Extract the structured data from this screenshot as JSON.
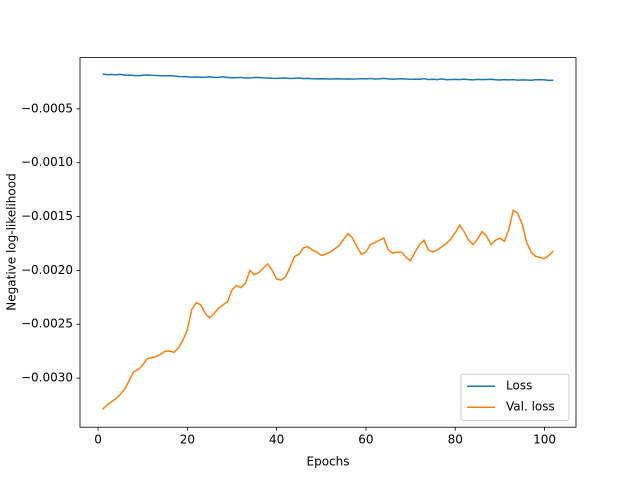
{
  "chart_data": {
    "type": "line",
    "xlabel": "Epochs",
    "ylabel": "Negative log-likelihood",
    "x": [
      1,
      2,
      3,
      4,
      5,
      6,
      7,
      8,
      9,
      10,
      11,
      12,
      13,
      14,
      15,
      16,
      17,
      18,
      19,
      20,
      21,
      22,
      23,
      24,
      25,
      26,
      27,
      28,
      29,
      30,
      31,
      32,
      33,
      34,
      35,
      36,
      37,
      38,
      39,
      40,
      41,
      42,
      43,
      44,
      45,
      46,
      47,
      48,
      49,
      50,
      51,
      52,
      53,
      54,
      55,
      56,
      57,
      58,
      59,
      60,
      61,
      62,
      63,
      64,
      65,
      66,
      67,
      68,
      69,
      70,
      71,
      72,
      73,
      74,
      75,
      76,
      77,
      78,
      79,
      80,
      81,
      82,
      83,
      84,
      85,
      86,
      87,
      88,
      89,
      90,
      91,
      92,
      93,
      94,
      95,
      96,
      97,
      98,
      99,
      100,
      101,
      102
    ],
    "series": [
      {
        "name": "Loss",
        "color": "#1f77b4",
        "values": [
          -0.000178,
          -0.000182,
          -0.000181,
          -0.000183,
          -0.00018,
          -0.000187,
          -0.000186,
          -0.00019,
          -0.000192,
          -0.000188,
          -0.000185,
          -0.000188,
          -0.00019,
          -0.000192,
          -0.000193,
          -0.000193,
          -0.000194,
          -0.0002,
          -0.000201,
          -0.000203,
          -0.000205,
          -0.000204,
          -0.000206,
          -0.000205,
          -0.000203,
          -0.000208,
          -0.000206,
          -0.000203,
          -0.000208,
          -0.000212,
          -0.00021,
          -0.000208,
          -0.000214,
          -0.000213,
          -0.000209,
          -0.000208,
          -0.000212,
          -0.000214,
          -0.000216,
          -0.000217,
          -0.000215,
          -0.000214,
          -0.000218,
          -0.000216,
          -0.000214,
          -0.000219,
          -0.000217,
          -0.00022,
          -0.000222,
          -0.00022,
          -0.000221,
          -0.000223,
          -0.000221,
          -0.00022,
          -0.000223,
          -0.000222,
          -0.000224,
          -0.000221,
          -0.000219,
          -0.000222,
          -0.000218,
          -0.000223,
          -0.000221,
          -0.000217,
          -0.000222,
          -0.000225,
          -0.000221,
          -0.00022,
          -0.000223,
          -0.000226,
          -0.000224,
          -0.000225,
          -0.000219,
          -0.000227,
          -0.000225,
          -0.000228,
          -0.000222,
          -0.00023,
          -0.000227,
          -0.000226,
          -0.000229,
          -0.000224,
          -0.000228,
          -0.000231,
          -0.000226,
          -0.000229,
          -0.000227,
          -0.000225,
          -0.00023,
          -0.000232,
          -0.000228,
          -0.000231,
          -0.000229,
          -0.000233,
          -0.000231,
          -0.000232,
          -0.000234,
          -0.00023,
          -0.000229,
          -0.000231,
          -0.000235,
          -0.000234
        ]
      },
      {
        "name": "Val. loss",
        "color": "#ff7f0e",
        "values": [
          -0.00329,
          -0.00325,
          -0.00322,
          -0.00319,
          -0.00315,
          -0.0031,
          -0.00302,
          -0.00294,
          -0.00292,
          -0.00288,
          -0.00282,
          -0.00281,
          -0.0028,
          -0.00278,
          -0.00275,
          -0.00275,
          -0.00276,
          -0.00272,
          -0.00265,
          -0.00255,
          -0.00236,
          -0.0023,
          -0.00232,
          -0.0024,
          -0.00244,
          -0.0024,
          -0.00235,
          -0.00232,
          -0.00229,
          -0.00218,
          -0.00214,
          -0.00216,
          -0.00212,
          -0.002,
          -0.00204,
          -0.00202,
          -0.00198,
          -0.00194,
          -0.002,
          -0.00208,
          -0.00209,
          -0.00206,
          -0.00197,
          -0.00187,
          -0.00185,
          -0.00179,
          -0.00178,
          -0.00181,
          -0.00183,
          -0.00186,
          -0.00185,
          -0.00183,
          -0.0018,
          -0.00177,
          -0.00171,
          -0.00166,
          -0.0017,
          -0.00178,
          -0.00185,
          -0.00183,
          -0.00176,
          -0.00174,
          -0.00172,
          -0.0017,
          -0.00181,
          -0.00184,
          -0.00183,
          -0.00183,
          -0.00188,
          -0.00191,
          -0.00183,
          -0.00176,
          -0.00172,
          -0.00181,
          -0.00183,
          -0.00181,
          -0.00178,
          -0.00175,
          -0.00171,
          -0.00165,
          -0.00158,
          -0.00164,
          -0.00172,
          -0.00176,
          -0.00171,
          -0.00164,
          -0.00168,
          -0.00176,
          -0.00172,
          -0.0017,
          -0.00173,
          -0.00162,
          -0.00144,
          -0.00147,
          -0.00157,
          -0.00174,
          -0.00183,
          -0.00187,
          -0.00188,
          -0.00189,
          -0.00186,
          -0.00182
        ]
      }
    ],
    "xlim": [
      -4.05,
      107.05
    ],
    "ylim": [
      -0.003456,
      -2.4e-05
    ],
    "xticks": [
      0,
      20,
      40,
      60,
      80,
      100
    ],
    "yticks": [
      {
        "value": -0.003,
        "label": "−0.0030"
      },
      {
        "value": -0.0025,
        "label": "−0.0025"
      },
      {
        "value": -0.002,
        "label": "−0.0020"
      },
      {
        "value": -0.0015,
        "label": "−0.0015"
      },
      {
        "value": -0.001,
        "label": "−0.0010"
      },
      {
        "value": -0.0005,
        "label": "−0.0005"
      }
    ],
    "legend": "lower right"
  }
}
